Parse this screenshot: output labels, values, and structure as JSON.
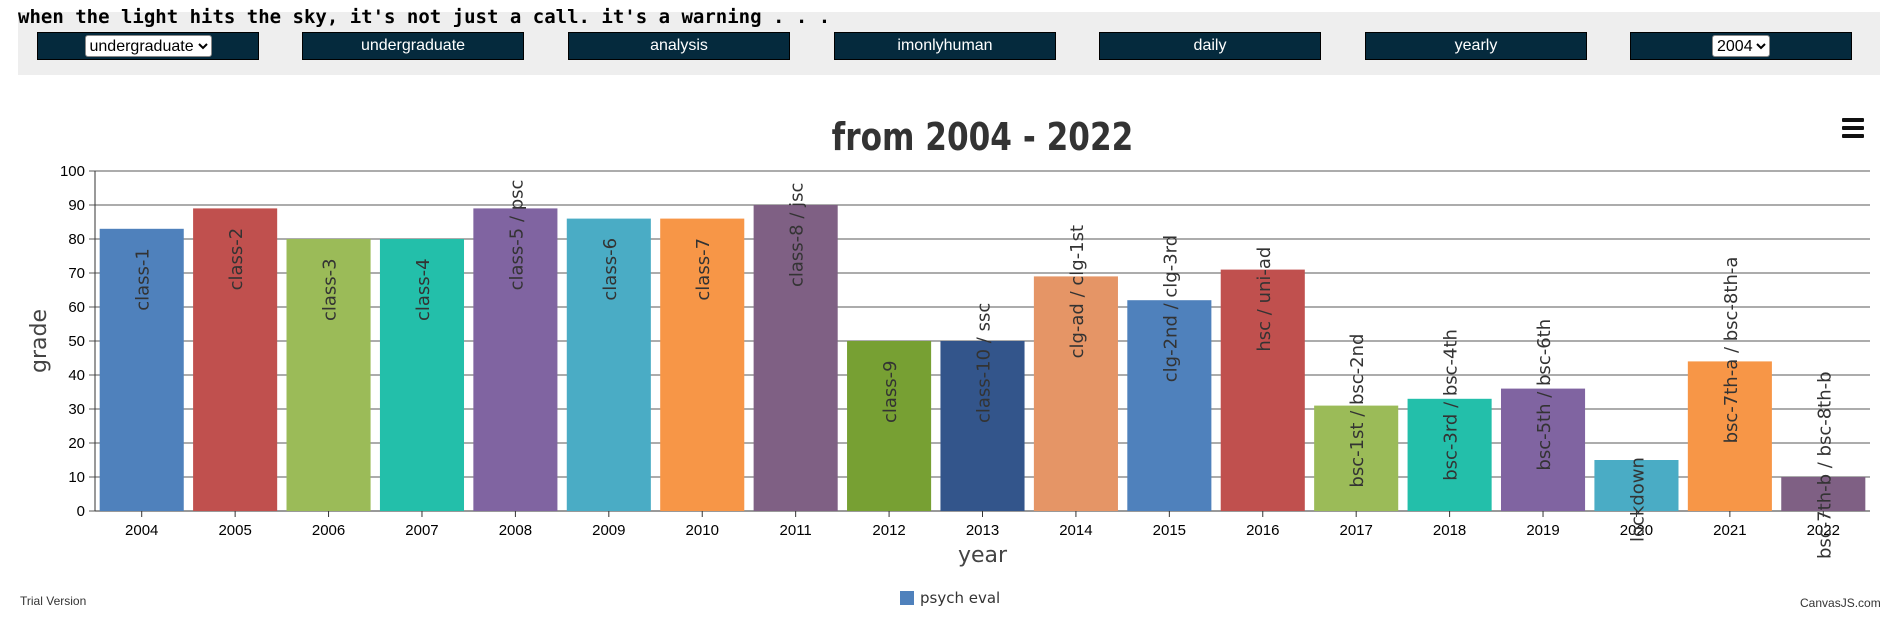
{
  "header": {
    "tagline": "when the light hits the sky, it's not just a call. it's a warning . . ."
  },
  "toolbar": {
    "select_level": {
      "value": "undergraduate",
      "options": [
        "undergraduate"
      ]
    },
    "buttons": [
      "undergraduate",
      "analysis",
      "imonlyhuman",
      "daily",
      "yearly"
    ],
    "select_year": {
      "value": "2004",
      "options": [
        "2004"
      ]
    }
  },
  "footer": {
    "trial": "Trial Version",
    "credit": "CanvasJS.com"
  },
  "chart_data": {
    "type": "bar",
    "title": "from 2004 - 2022",
    "xlabel": "year",
    "ylabel": "grade",
    "ylim": [
      0,
      100
    ],
    "yticks": [
      0,
      10,
      20,
      30,
      40,
      50,
      60,
      70,
      80,
      90,
      100
    ],
    "grid": true,
    "legend_position": "bottom",
    "series": [
      {
        "name": "psych eval",
        "color": "#4f81bc"
      }
    ],
    "categories": [
      "2004",
      "2005",
      "2006",
      "2007",
      "2008",
      "2009",
      "2010",
      "2011",
      "2012",
      "2013",
      "2014",
      "2015",
      "2016",
      "2017",
      "2018",
      "2019",
      "2020",
      "2021",
      "2022"
    ],
    "values": [
      83,
      89,
      80,
      80,
      89,
      86,
      86,
      90,
      50,
      50,
      69,
      62,
      71,
      31,
      33,
      36,
      15,
      44,
      10
    ],
    "labels": [
      "class-1",
      "class-2",
      "class-3",
      "class-4",
      "class-5 / psc",
      "class-6",
      "class-7",
      "class-8 / jsc",
      "class-9",
      "class-10 / ssc",
      "clg-ad / clg-1st",
      "clg-2nd / clg-3rd",
      "hsc / uni-ad",
      "bsc-1st / bsc-2nd",
      "bsc-3rd / bsc-4th",
      "bsc-5th / bsc-6th",
      "lockdown",
      "bsc-7th-a / bsc-8th-a",
      "bsc-7th-b / bsc-8th-b"
    ],
    "colors": [
      "#4f81bc",
      "#c0504e",
      "#9bbb58",
      "#23bfaa",
      "#8064a1",
      "#4aacc5",
      "#f79647",
      "#7f6084",
      "#77a033",
      "#33558b",
      "#e59566",
      "#4f81bc",
      "#c0504e",
      "#9bbb58",
      "#23bfaa",
      "#8064a1",
      "#4aacc5",
      "#f79647",
      "#7f6084"
    ]
  }
}
